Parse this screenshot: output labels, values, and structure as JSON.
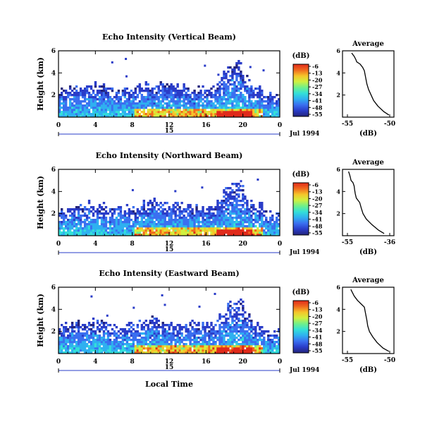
{
  "x_label": "Local Time",
  "date_label": "Jul 1994",
  "day_label": "15",
  "cbar_label": "(dB)",
  "cbar_ticks": [
    "-6",
    "-13",
    "-20",
    "-27",
    "-34",
    "-41",
    "-48",
    "-55"
  ],
  "colors": {
    "scale": [
      "#23237a",
      "#2a3cc8",
      "#3a6ff0",
      "#2fb0f0",
      "#33e0d8",
      "#6ff08a",
      "#d0f040",
      "#f5c52a",
      "#f06a1e",
      "#e02a1a"
    ]
  },
  "chart_data": [
    {
      "type": "heatmap",
      "title": "Echo Intensity (Vertical Beam)",
      "ylabel": "Height (km)",
      "xlim": [
        0,
        24
      ],
      "ylim": [
        0,
        6
      ],
      "xticks": [
        "0",
        "4",
        "8",
        "12",
        "16",
        "20",
        "0"
      ],
      "yticks": [
        "6",
        "4",
        "2"
      ],
      "colorbar": {
        "label": "(dB)",
        "range": [
          -55,
          -6
        ],
        "ticks": [
          -6,
          -13,
          -20,
          -27,
          -34,
          -41,
          -48,
          -55
        ]
      },
      "profile": {
        "title": "Average",
        "xlabel": "(dB)",
        "xticks": [
          "-55",
          "-50"
        ],
        "xlim": [
          -55,
          -50
        ],
        "yticks": [
          "6",
          "4",
          "2"
        ],
        "height_km": [
          5.8,
          5.5,
          5.2,
          5.0,
          4.8,
          4.5,
          4.2,
          3.8,
          3.4,
          3.0,
          2.5,
          2.0,
          1.5,
          1.0,
          0.5,
          0.2
        ],
        "db": [
          -54.5,
          -54.2,
          -54.0,
          -53.9,
          -53.5,
          -53.2,
          -53.0,
          -52.9,
          -52.8,
          -52.7,
          -52.5,
          -52.2,
          -51.9,
          -51.4,
          -50.7,
          -50.1
        ]
      }
    },
    {
      "type": "heatmap",
      "title": "Echo Intensity (Northward Beam)",
      "ylabel": "Height (km)",
      "xlim": [
        0,
        24
      ],
      "ylim": [
        0,
        6
      ],
      "xticks": [
        "0",
        "4",
        "8",
        "12",
        "16",
        "20",
        "0"
      ],
      "yticks": [
        "6",
        "4",
        "2"
      ],
      "colorbar": {
        "label": "(dB)",
        "range": [
          -55,
          -6
        ],
        "ticks": [
          -6,
          -13,
          -20,
          -27,
          -34,
          -41,
          -48,
          -55
        ]
      },
      "profile": {
        "title": "Average",
        "xlabel": "(dB)",
        "xticks": [
          "-55",
          "-36"
        ],
        "xlim": [
          -55,
          -36
        ],
        "yticks": [
          "6",
          "4",
          "2"
        ],
        "height_km": [
          5.8,
          5.5,
          5.2,
          5.0,
          4.8,
          4.5,
          4.2,
          3.8,
          3.4,
          3.0,
          2.5,
          2.0,
          1.5,
          1.0,
          0.5,
          0.2
        ],
        "db": [
          -54.5,
          -54.0,
          -53.6,
          -53.4,
          -52.5,
          -52.0,
          -51.8,
          -51.5,
          -51.0,
          -49.5,
          -48.8,
          -48.0,
          -46.5,
          -44.0,
          -41.0,
          -38.5
        ]
      }
    },
    {
      "type": "heatmap",
      "title": "Echo Intensity (Eastward Beam)",
      "ylabel": "Height (km)",
      "xlim": [
        0,
        24
      ],
      "ylim": [
        0,
        6
      ],
      "xticks": [
        "0",
        "4",
        "8",
        "12",
        "16",
        "20",
        "0"
      ],
      "yticks": [
        "6",
        "4",
        "2"
      ],
      "colorbar": {
        "label": "(dB)",
        "range": [
          -55,
          -6
        ],
        "ticks": [
          -6,
          -13,
          -20,
          -27,
          -34,
          -41,
          -48,
          -55
        ]
      },
      "profile": {
        "title": "Average",
        "xlabel": "(dB)",
        "xticks": [
          "-55",
          "-50"
        ],
        "xlim": [
          -55,
          -50
        ],
        "yticks": [
          "6",
          "4",
          "2"
        ],
        "height_km": [
          5.8,
          5.5,
          5.2,
          5.0,
          4.8,
          4.5,
          4.2,
          3.8,
          3.4,
          3.0,
          2.5,
          2.0,
          1.5,
          1.0,
          0.5,
          0.2
        ],
        "db": [
          -54.6,
          -54.4,
          -54.2,
          -54.0,
          -53.8,
          -53.4,
          -53.0,
          -52.9,
          -52.8,
          -52.7,
          -52.6,
          -52.4,
          -52.0,
          -51.5,
          -50.8,
          -50.1
        ]
      }
    }
  ]
}
